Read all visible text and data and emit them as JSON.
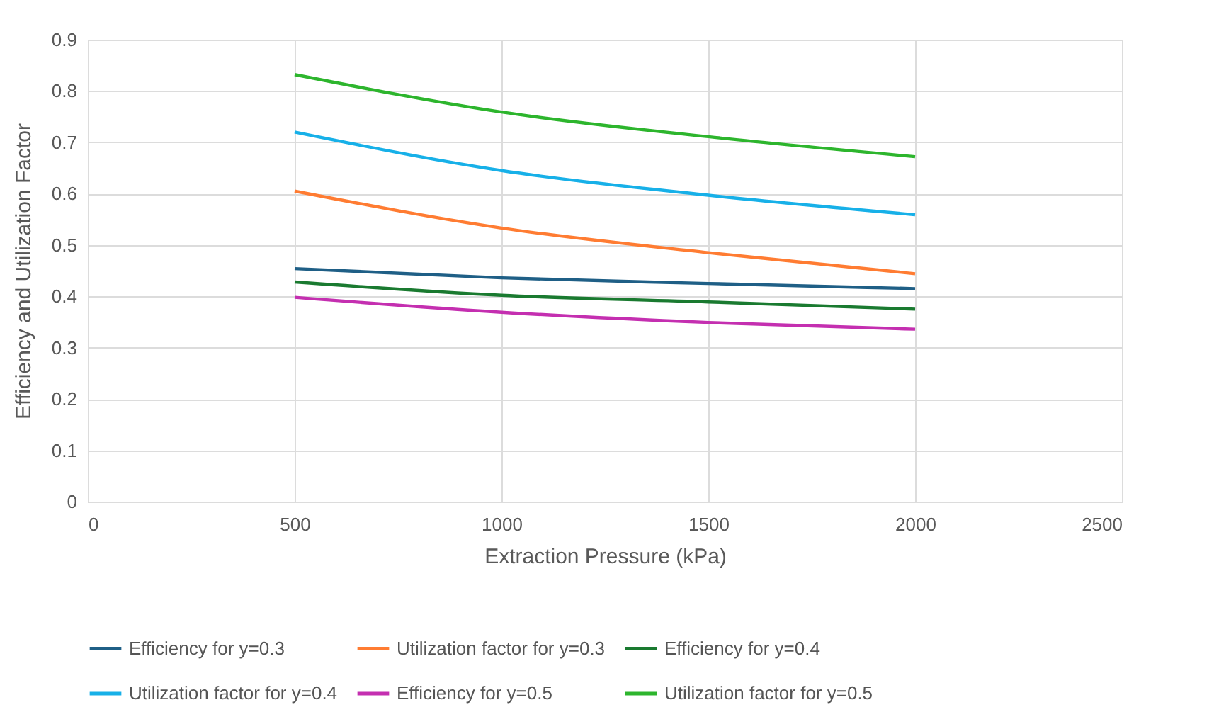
{
  "chart_data": {
    "type": "line",
    "xlabel": "Extraction Pressure (kPa)",
    "ylabel": "Efficiency and Utilization Factor",
    "x": [
      500,
      1000,
      1500,
      2000
    ],
    "series": [
      {
        "name": "Efficiency for y=0.3",
        "color": "#1f5f86",
        "values": [
          0.454,
          0.436,
          0.425,
          0.415
        ]
      },
      {
        "name": "Utilization factor for y=0.3",
        "color": "#ff7c32",
        "values": [
          0.605,
          0.533,
          0.485,
          0.444
        ]
      },
      {
        "name": "Efficiency for y=0.4",
        "color": "#1a7a30",
        "values": [
          0.428,
          0.402,
          0.389,
          0.375
        ]
      },
      {
        "name": "Utilization factor for y=0.4",
        "color": "#17b0e8",
        "values": [
          0.72,
          0.645,
          0.597,
          0.559
        ]
      },
      {
        "name": "Efficiency for y=0.5",
        "color": "#c42fb0",
        "values": [
          0.398,
          0.369,
          0.349,
          0.336
        ]
      },
      {
        "name": "Utilization factor for y=0.5",
        "color": "#2db52d",
        "values": [
          0.832,
          0.759,
          0.711,
          0.672
        ]
      }
    ],
    "xlim": [
      0,
      2500
    ],
    "xticks": [
      0,
      500,
      1000,
      1500,
      2000,
      2500
    ],
    "ylim": [
      0,
      0.9
    ],
    "yticks": [
      0,
      0.1,
      0.2,
      0.3,
      0.4,
      0.5,
      0.6,
      0.7,
      0.8,
      0.9
    ],
    "grid": true,
    "legend": "bottom",
    "marker": "none",
    "line_style": "solid"
  }
}
